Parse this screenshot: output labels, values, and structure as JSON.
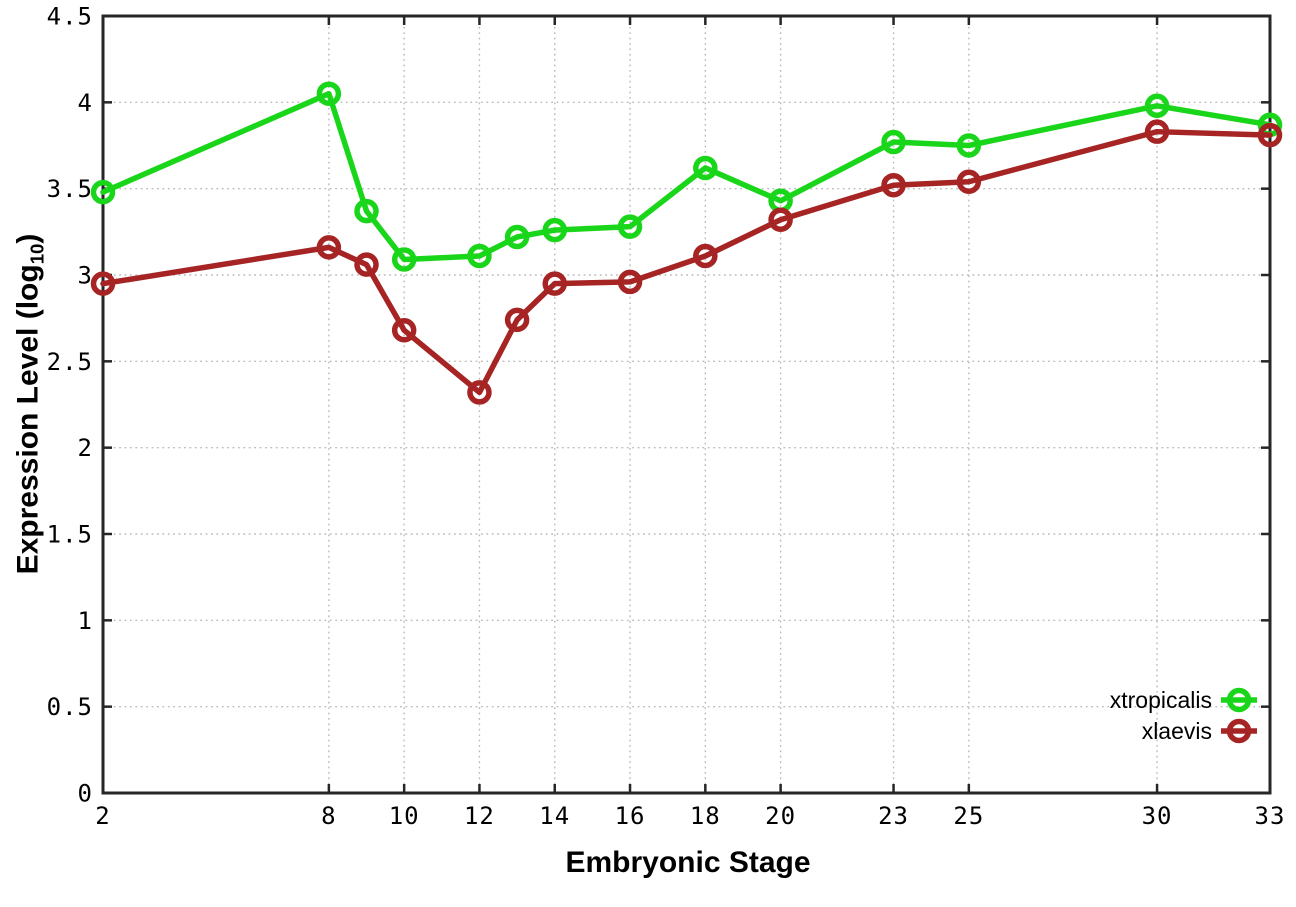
{
  "chart_data": {
    "type": "line",
    "title": "",
    "xlabel": "Embryonic Stage",
    "ylabel": "Expression Level (log10)",
    "ylabel_parts": {
      "prefix": "Expression Level (log",
      "sub": "10",
      "suffix": ")"
    },
    "x": [
      2,
      8,
      9,
      10,
      12,
      13,
      14,
      16,
      18,
      20,
      23,
      25,
      30,
      33
    ],
    "x_ticks": [
      2,
      8,
      10,
      12,
      14,
      16,
      18,
      20,
      23,
      25,
      30,
      33
    ],
    "x_tick_labels": [
      "2",
      "8",
      "10",
      "12",
      "14",
      "16",
      "18",
      "20",
      "23",
      "25",
      "30",
      "33"
    ],
    "y_ticks": [
      0,
      0.5,
      1,
      1.5,
      2,
      2.5,
      3,
      3.5,
      4,
      4.5
    ],
    "y_tick_labels": [
      "0",
      "0.5",
      "1",
      "1.5",
      "2",
      "2.5",
      "3",
      "3.5",
      "4",
      "4.5"
    ],
    "xlim": [
      2,
      33
    ],
    "ylim": [
      0,
      4.5
    ],
    "grid": true,
    "legend_position": "bottom-right",
    "series": [
      {
        "name": "xtropicalis",
        "color": "#1ad61a",
        "marker": "open-circle",
        "values": [
          3.48,
          4.05,
          3.37,
          3.09,
          3.11,
          3.22,
          3.26,
          3.28,
          3.62,
          3.43,
          3.77,
          3.75,
          3.98,
          3.87
        ]
      },
      {
        "name": "xlaevis",
        "color": "#a62424",
        "marker": "open-circle",
        "values": [
          2.95,
          3.16,
          3.06,
          2.68,
          2.32,
          2.74,
          2.95,
          2.96,
          3.11,
          3.32,
          3.52,
          3.54,
          3.83,
          3.81
        ]
      }
    ]
  },
  "colors": {
    "background": "#ffffff",
    "axis": "#262626",
    "grid": "#bcbcbc",
    "text": "#000000"
  }
}
